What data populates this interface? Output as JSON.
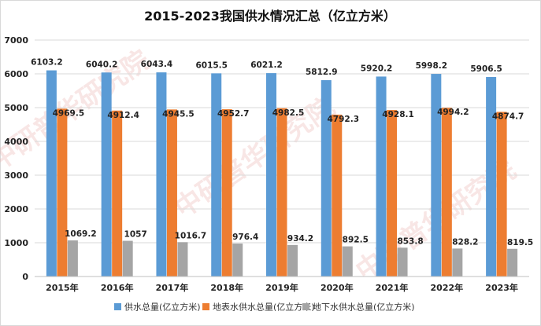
{
  "chart_data": {
    "type": "bar",
    "title": "2015-2023我国供水情况汇总（亿立方米）",
    "categories": [
      "2015年",
      "2016年",
      "2017年",
      "2018年",
      "2019年",
      "2020年",
      "2021年",
      "2022年",
      "2023年"
    ],
    "series": [
      {
        "name": "供水总量(亿立方米)",
        "color": "#5b9bd5",
        "values": [
          6103.2,
          6040.2,
          6043.4,
          6015.5,
          6021.2,
          5812.9,
          5920.2,
          5998.2,
          5906.5
        ],
        "labels": [
          "6103.2",
          "6040.2",
          "6043.4",
          "6015.5",
          "6021.2",
          "5812.9",
          "5920.2",
          "5998.2",
          "5906.5"
        ]
      },
      {
        "name": "地表水供水总量(亿立方米)",
        "color": "#ed7d31",
        "values": [
          4969.5,
          4912.4,
          4945.5,
          4952.7,
          4982.5,
          4792.3,
          4928.1,
          4994.2,
          4874.7
        ],
        "labels": [
          "4969.5",
          "4912.4",
          "4945.5",
          "4952.7",
          "4982.5",
          "4792.3",
          "4928.1",
          "4994.2",
          "4874.7"
        ]
      },
      {
        "name": "地下水供水总量(亿立方米)",
        "color": "#a5a5a5",
        "values": [
          1069.2,
          1057,
          1016.7,
          976.4,
          934.2,
          892.5,
          853.8,
          828.2,
          819.5
        ],
        "labels": [
          "1069.2",
          "1057",
          "1016.7",
          "976.4",
          "934.2",
          "892.5",
          "853.8",
          "828.2",
          "819.5"
        ]
      }
    ],
    "y_ticks": [
      "0",
      "1000",
      "2000",
      "3000",
      "4000",
      "5000",
      "6000",
      "7000"
    ],
    "ylim": [
      0,
      7000
    ],
    "grid": true,
    "legend_position": "bottom",
    "xlabel": "",
    "ylabel": ""
  },
  "watermark": "中研普华研究院"
}
